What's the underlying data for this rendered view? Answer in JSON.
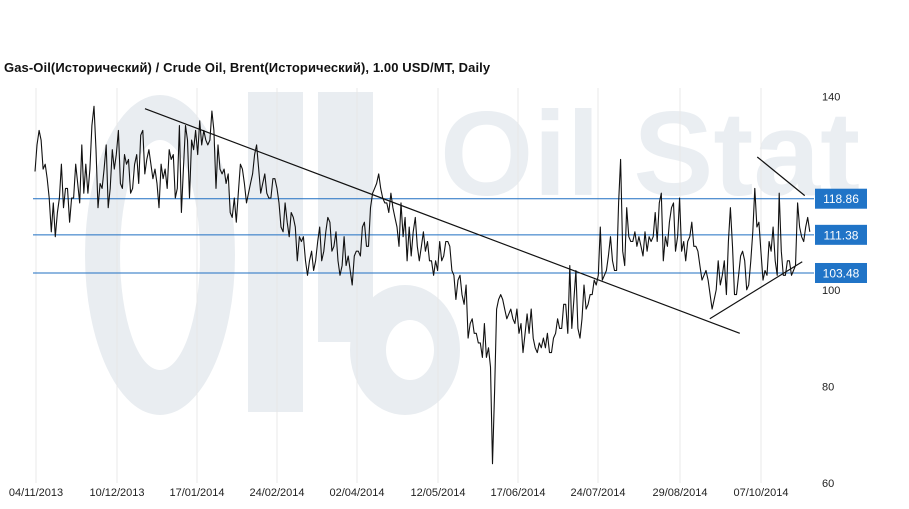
{
  "chart_data": {
    "type": "line",
    "title": "Gas-Oil(Исторический) / Crude Oil, Brent(Исторический), 1.00 USD/MT, Daily",
    "xlabel": "",
    "ylabel": "",
    "x_tick_labels": [
      "04/11/2013",
      "10/12/2013",
      "17/01/2014",
      "24/02/2014",
      "02/04/2014",
      "12/05/2014",
      "17/06/2014",
      "24/07/2014",
      "29/08/2014",
      "07/10/2014"
    ],
    "y_ticks": [
      140,
      100,
      80,
      60
    ],
    "ylim": [
      60,
      140
    ],
    "grid": "vertical",
    "y_axis_position": "right",
    "series": [
      {
        "values": [
          124.5,
          130,
          133,
          131,
          125,
          126,
          123,
          119,
          112,
          118,
          111,
          116,
          119,
          126,
          117,
          121,
          121,
          114,
          119,
          119,
          126,
          122,
          118,
          130,
          120,
          126,
          120,
          125,
          134,
          138,
          129,
          117,
          122,
          121,
          125,
          130,
          117,
          121,
          129,
          125,
          128,
          133,
          122,
          121,
          128,
          126,
          127,
          120,
          121,
          126,
          128,
          122,
          132,
          133,
          124,
          127,
          129,
          126,
          123,
          125,
          122,
          117,
          126,
          123,
          125,
          121,
          129,
          127,
          128,
          119,
          121,
          134,
          116,
          125,
          134,
          131,
          119,
          131,
          129,
          133,
          128,
          135,
          130,
          133,
          131,
          130,
          131,
          137,
          133,
          121,
          130,
          125,
          124,
          125,
          122,
          124,
          116,
          115,
          119,
          114,
          120,
          126,
          125,
          122,
          118,
          120,
          122,
          124,
          128,
          130,
          125,
          120,
          122,
          124,
          120,
          119,
          119,
          123,
          123,
          121,
          118,
          113,
          112,
          118,
          114,
          111,
          116,
          115,
          113,
          106,
          111,
          110,
          111,
          106,
          103,
          106,
          108,
          104,
          106,
          110,
          113,
          106,
          108,
          112,
          115,
          114,
          108,
          109,
          112,
          106,
          103,
          105,
          111,
          105,
          107,
          104,
          101,
          107,
          108,
          108,
          107,
          113,
          114,
          109,
          109,
          117,
          120,
          121,
          122,
          124,
          121,
          119,
          118,
          118,
          116,
          120,
          117,
          115,
          113,
          109,
          118,
          111,
          115,
          106,
          113,
          107,
          112,
          115,
          109,
          106,
          109,
          112,
          108,
          110,
          106,
          106,
          103,
          106,
          104,
          110,
          106,
          107,
          110,
          110,
          109,
          104,
          103,
          98,
          102,
          103,
          99,
          97,
          101,
          90,
          93,
          94,
          91,
          91,
          89,
          89,
          86,
          93,
          86,
          88,
          84,
          64,
          79,
          96,
          98,
          99,
          98,
          96,
          94,
          95,
          96,
          94,
          93,
          96,
          91,
          93,
          87,
          91,
          95,
          91,
          96,
          90,
          88,
          87,
          89,
          88,
          90,
          88,
          91,
          87,
          87,
          90,
          91,
          94,
          92,
          92,
          97,
          97,
          91,
          105,
          92,
          98,
          104,
          92,
          90,
          94,
          101,
          96,
          97,
          99,
          99,
          102,
          101,
          103,
          113,
          102,
          103,
          104,
          107,
          111,
          106,
          104,
          104,
          118,
          127,
          108,
          105,
          117,
          111,
          110,
          110,
          112,
          109,
          111,
          109,
          107,
          112,
          108,
          111,
          110,
          111,
          116,
          110,
          118,
          120,
          106,
          111,
          109,
          114,
          117,
          118,
          108,
          111,
          119,
          108,
          110,
          106,
          110,
          111,
          114,
          109,
          109,
          108,
          105,
          102,
          103,
          104,
          102,
          99,
          96,
          98,
          100,
          106,
          101,
          103,
          106,
          99,
          110,
          117,
          109,
          99,
          99,
          103,
          107,
          108,
          106,
          100,
          101,
          106,
          112,
          121,
          113,
          114,
          108,
          102,
          104,
          103,
          110,
          108,
          113,
          106,
          103,
          120,
          108,
          103,
          103,
          106,
          106,
          103,
          104,
          105,
          118,
          113,
          111,
          110,
          113,
          115,
          112
        ]
      }
    ],
    "levels": [
      {
        "value": 118.86,
        "label": "118.86"
      },
      {
        "value": 111.38,
        "label": "111.38"
      },
      {
        "value": 103.48,
        "label": "103.48"
      }
    ],
    "trendlines": [
      {
        "from": [
          44,
          137.5
        ],
        "to": [
          282,
          91
        ]
      },
      {
        "from": [
          289,
          127.5
        ],
        "to": [
          308,
          119.5
        ]
      },
      {
        "from": [
          270,
          94
        ],
        "to": [
          307,
          105.8
        ]
      }
    ],
    "colors": {
      "series": "#111111",
      "levels": "#1f6fc2",
      "level_badge": "#2074c7",
      "trendline": "#111111",
      "grid": "#e8e8e8",
      "watermark": "#e9edf1"
    },
    "watermark": "Oil Stat"
  }
}
